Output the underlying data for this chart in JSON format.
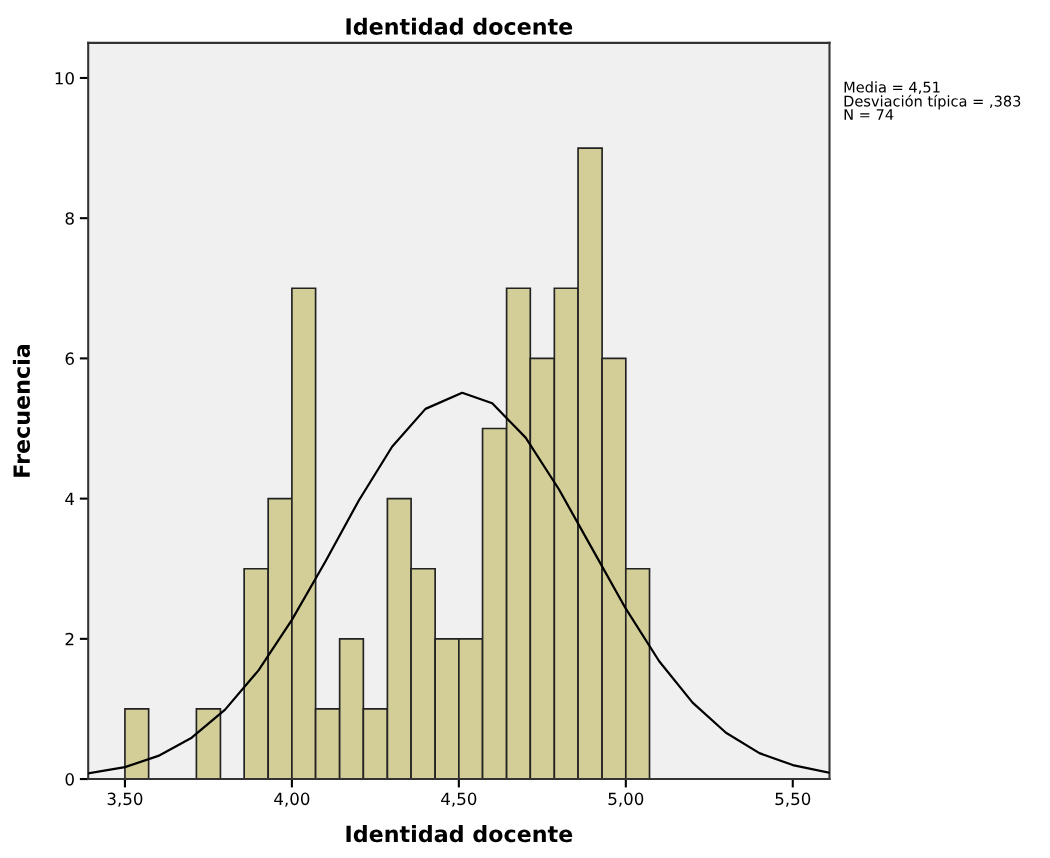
{
  "chart_data": {
    "type": "histogram",
    "title": "Identidad docente",
    "xlabel": "Identidad docente",
    "ylabel": "Frecuencia",
    "xlim": [
      3.39,
      5.61
    ],
    "xticks": [
      {
        "value": 3.5,
        "label": "3,50"
      },
      {
        "value": 4.0,
        "label": "4,00"
      },
      {
        "value": 4.5,
        "label": "4,50"
      },
      {
        "value": 5.0,
        "label": "5,00"
      },
      {
        "value": 5.5,
        "label": "5,50"
      }
    ],
    "ylim": [
      0,
      10.5
    ],
    "yticks": [
      0,
      2,
      4,
      6,
      8,
      10
    ],
    "grid": false,
    "legend": false,
    "series": [
      {
        "color": "#d3ce97",
        "bins": [
          3.5,
          3.571,
          3.643,
          3.714,
          3.786,
          3.857,
          3.929,
          4.0,
          4.071,
          4.143,
          4.214,
          4.286,
          4.357,
          4.429,
          4.5,
          4.571,
          4.643,
          4.714,
          4.786,
          4.857,
          4.929,
          5.0,
          5.071
        ],
        "values": [
          1,
          0,
          0,
          1,
          0,
          3,
          4,
          7,
          1,
          2,
          1,
          4,
          3,
          2,
          2,
          5,
          7,
          6,
          7,
          9,
          6,
          3
        ]
      },
      {
        "type": "line",
        "color": "#000000",
        "x": [
          3.39,
          3.5,
          3.6,
          3.7,
          3.8,
          3.9,
          4.0,
          4.1,
          4.2,
          4.3,
          4.4,
          4.51,
          4.6,
          4.7,
          4.8,
          4.9,
          5.0,
          5.1,
          5.2,
          5.3,
          5.4,
          5.5,
          5.61
        ],
        "values": [
          0.08,
          0.17,
          0.33,
          0.59,
          0.99,
          1.55,
          2.27,
          3.1,
          3.97,
          4.74,
          5.28,
          5.51,
          5.36,
          4.87,
          4.13,
          3.28,
          2.43,
          1.68,
          1.09,
          0.66,
          0.37,
          0.2,
          0.09
        ]
      }
    ],
    "annotations": [
      "Media = 4,51",
      "Desviación típica = ,383",
      "N = 74"
    ]
  }
}
